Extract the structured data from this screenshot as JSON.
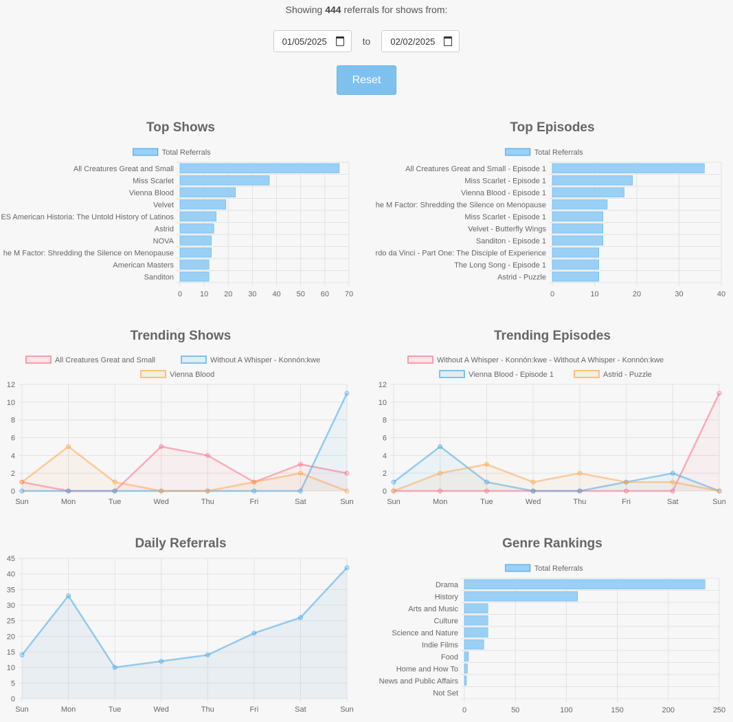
{
  "header": {
    "prefix": "Showing",
    "count": "444",
    "suffix": "referrals for shows from:"
  },
  "filters": {
    "start_date": "01/05/2025",
    "to_label": "to",
    "end_date": "02/02/2025",
    "reset_label": "Reset"
  },
  "colors": {
    "blue": "#36a2eb",
    "pink": "#ff6384",
    "orange": "#ff9f40",
    "bar_fill": "#9ad0f5"
  },
  "chart_data": [
    {
      "id": "top-shows",
      "type": "bar",
      "orientation": "horizontal",
      "title": "Top Shows",
      "legend": [
        "Total Referrals"
      ],
      "categories": [
        "All Creatures Great and Small",
        "Miss Scarlet",
        "Vienna Blood",
        "Velvet",
        "ES American Historia: The Untold History of Latinos",
        "Astrid",
        "NOVA",
        "he M Factor: Shredding the Silence on Menopause",
        "American Masters",
        "Sanditon"
      ],
      "values": [
        66,
        37,
        23,
        19,
        15,
        14,
        13,
        13,
        12,
        12
      ],
      "xlim": [
        0,
        70
      ],
      "ticks": [
        0,
        10,
        20,
        30,
        40,
        50,
        60,
        70
      ]
    },
    {
      "id": "top-episodes",
      "type": "bar",
      "orientation": "horizontal",
      "title": "Top Episodes",
      "legend": [
        "Total Referrals"
      ],
      "categories": [
        "All Creatures Great and Small - Episode 1",
        "Miss Scarlet - Episode 1",
        "Vienna Blood - Episode 1",
        "he M Factor: Shredding the Silence on Menopause",
        "Miss Scarlet - Episode 1",
        "Velvet - Butterfly Wings",
        "Sanditon - Episode 1",
        "rdo da Vinci - Part One: The Disciple of Experience",
        "The Long Song - Episode 1",
        "Astrid - Puzzle"
      ],
      "values": [
        36,
        19,
        17,
        13,
        12,
        12,
        12,
        11,
        11,
        11
      ],
      "xlim": [
        0,
        40
      ],
      "ticks": [
        0,
        10,
        20,
        30,
        40
      ]
    },
    {
      "id": "trending-shows",
      "type": "line",
      "title": "Trending Shows",
      "x": [
        "Sun",
        "Mon",
        "Tue",
        "Wed",
        "Thu",
        "Fri",
        "Sat",
        "Sun"
      ],
      "ylim": [
        0,
        12
      ],
      "ticks": [
        0,
        2,
        4,
        6,
        8,
        10,
        12
      ],
      "legend_rows": [
        [
          0,
          1
        ],
        [
          2
        ]
      ],
      "series": [
        {
          "name": "All Creatures Great and Small",
          "color": "#ff6384",
          "values": [
            1,
            0,
            0,
            5,
            4,
            1,
            3,
            2
          ]
        },
        {
          "name": "Without A Whisper - Konnón:kwe",
          "color": "#36a2eb",
          "values": [
            0,
            0,
            0,
            0,
            0,
            0,
            0,
            11
          ]
        },
        {
          "name": "Vienna Blood",
          "color": "#ff9f40",
          "values": [
            1,
            5,
            1,
            0,
            0,
            1,
            2,
            0
          ]
        }
      ]
    },
    {
      "id": "trending-episodes",
      "type": "line",
      "title": "Trending Episodes",
      "x": [
        "Sun",
        "Mon",
        "Tue",
        "Wed",
        "Thu",
        "Fri",
        "Sat",
        "Sun"
      ],
      "ylim": [
        0,
        12
      ],
      "ticks": [
        0,
        2,
        4,
        6,
        8,
        10,
        12
      ],
      "legend_rows": [
        [
          0
        ],
        [
          1,
          2
        ]
      ],
      "series": [
        {
          "name": "Without A Whisper - Konnón:kwe - Without A Whisper - Konnón:kwe",
          "color": "#ff6384",
          "values": [
            0,
            0,
            0,
            0,
            0,
            0,
            0,
            11
          ]
        },
        {
          "name": "Vienna Blood - Episode 1",
          "color": "#36a2eb",
          "values": [
            1,
            5,
            1,
            0,
            0,
            1,
            2,
            0
          ]
        },
        {
          "name": "Astrid - Puzzle",
          "color": "#ff9f40",
          "values": [
            0,
            2,
            3,
            1,
            2,
            1,
            1,
            0
          ]
        }
      ]
    },
    {
      "id": "daily-referrals",
      "type": "line",
      "title": "Daily Referrals",
      "x": [
        "Sun",
        "Mon",
        "Tue",
        "Wed",
        "Thu",
        "Fri",
        "Sat",
        "Sun"
      ],
      "ylim": [
        0,
        45
      ],
      "ticks": [
        0,
        5,
        10,
        15,
        20,
        25,
        30,
        35,
        40,
        45
      ],
      "legend_rows": [],
      "series": [
        {
          "name": "Daily Referrals",
          "color": "#36a2eb",
          "values": [
            14,
            33,
            10,
            12,
            14,
            21,
            26,
            42
          ]
        }
      ]
    },
    {
      "id": "genre-rankings",
      "type": "bar",
      "orientation": "horizontal",
      "title": "Genre Rankings",
      "legend": [
        "Total Referrals"
      ],
      "categories": [
        "Drama",
        "History",
        "Arts and Music",
        "Culture",
        "Science and Nature",
        "Indie Films",
        "Food",
        "Home and How To",
        "News and Public Affairs",
        "Not Set"
      ],
      "values": [
        236,
        111,
        23,
        23,
        23,
        19,
        4,
        3,
        2,
        0
      ],
      "xlim": [
        0,
        250
      ],
      "ticks": [
        0,
        50,
        100,
        150,
        200,
        250
      ]
    }
  ]
}
